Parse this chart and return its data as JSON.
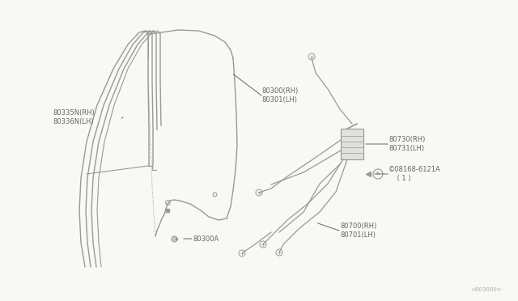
{
  "bg_color": "#f8f8f4",
  "line_color": "#9a9a94",
  "line_color2": "#aaaaaa",
  "text_color": "#666660",
  "diagram_ref": "<803000>",
  "figsize": [
    6.4,
    3.72
  ],
  "dpi": 100,
  "weatherstrip_label": "80335N(RH)\n80336N(LH)",
  "glass_label": "80300(RH)\n80301(LH)",
  "clip_label": "80300A",
  "motor_label": "80730(RH)\n80731(LH)",
  "bolt_label": "©08168-6121A\n    ( 1 )",
  "regulator_label": "80700(RH)\n80701(LH)"
}
